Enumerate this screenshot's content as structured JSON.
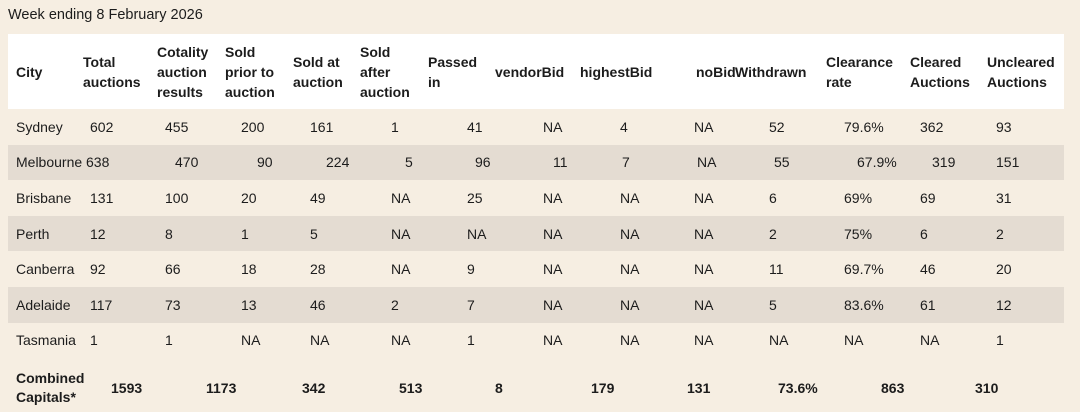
{
  "caption": "Week ending 8 February 2026",
  "headers": [
    "City",
    "Total\nauctions",
    "Cotality\nauction\nresults",
    "Sold\nprior to\nauction",
    "Sold at\nauction",
    "Sold\nafter\nauction",
    "Passed\nin",
    "vendorBid",
    "highestBid",
    "noBid",
    "Withdrawn",
    "Clearance\nrate",
    "Cleared\nAuctions",
    "Uncleared\nAuctions"
  ],
  "rows": [
    [
      "Sydney",
      "602",
      "455",
      "200",
      "161",
      "1",
      "41",
      "NA",
      "4",
      "NA",
      "52",
      "79.6%",
      "362",
      "93"
    ],
    [
      "Melbourne",
      "638",
      "470",
      "90",
      "224",
      "5",
      "96",
      "11",
      "7",
      "NA",
      "55",
      "67.9%",
      "319",
      "151"
    ],
    [
      "Brisbane",
      "131",
      "100",
      "20",
      "49",
      "NA",
      "25",
      "NA",
      "NA",
      "NA",
      "6",
      "69%",
      "69",
      "31"
    ],
    [
      "Perth",
      "12",
      "8",
      "1",
      "5",
      "NA",
      "NA",
      "NA",
      "NA",
      "NA",
      "2",
      "75%",
      "6",
      "2"
    ],
    [
      "Canberra",
      "92",
      "66",
      "18",
      "28",
      "NA",
      "9",
      "NA",
      "NA",
      "NA",
      "11",
      "69.7%",
      "46",
      "20"
    ],
    [
      "Adelaide",
      "117",
      "73",
      "13",
      "46",
      "2",
      "7",
      "NA",
      "NA",
      "NA",
      "5",
      "83.6%",
      "61",
      "12"
    ],
    [
      "Tasmania",
      "1",
      "1",
      "NA",
      "NA",
      "NA",
      "1",
      "NA",
      "NA",
      "NA",
      "NA",
      "NA",
      "NA",
      "1"
    ]
  ],
  "total": [
    "Combined\nCapitals*",
    "1593",
    "1173",
    "342",
    "513",
    "8",
    "179",
    "131",
    "73.6%",
    "863",
    "310"
  ]
}
